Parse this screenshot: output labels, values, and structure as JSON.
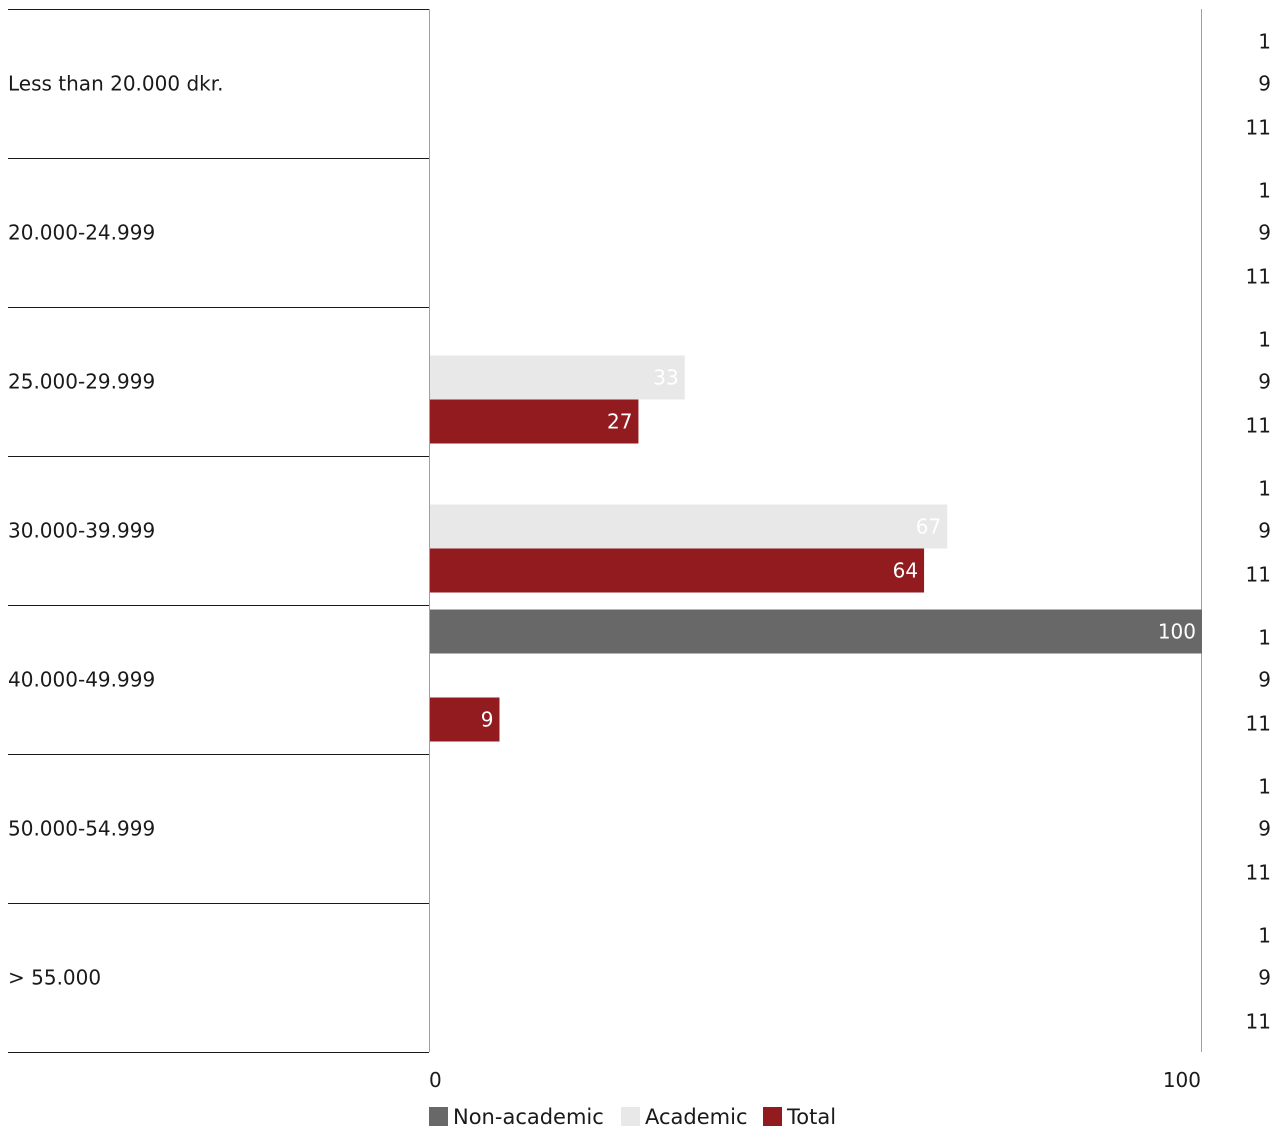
{
  "chart_data": {
    "type": "bar",
    "orientation": "horizontal",
    "categories": [
      "Less than 20.000 dkr.",
      "20.000-24.999",
      "25.000-29.999",
      "30.000-39.999",
      "40.000-49.999",
      "50.000-54.999",
      "> 55.000"
    ],
    "series": [
      {
        "name": "Non-academic",
        "color": "#686868",
        "n": "1",
        "values": [
          0,
          0,
          0,
          0,
          100,
          0,
          0
        ]
      },
      {
        "name": "Academic",
        "color": "#e8e8e8",
        "n": "9",
        "values": [
          0,
          0,
          33,
          67,
          0,
          0,
          0
        ]
      },
      {
        "name": "Total",
        "color": "#921b20",
        "n": "11",
        "values": [
          0,
          0,
          27,
          64,
          9,
          0,
          0
        ]
      }
    ],
    "xlim": [
      0,
      100
    ],
    "x_ticks": [
      "0",
      "100"
    ],
    "legend_position": "bottom",
    "grid": false
  }
}
